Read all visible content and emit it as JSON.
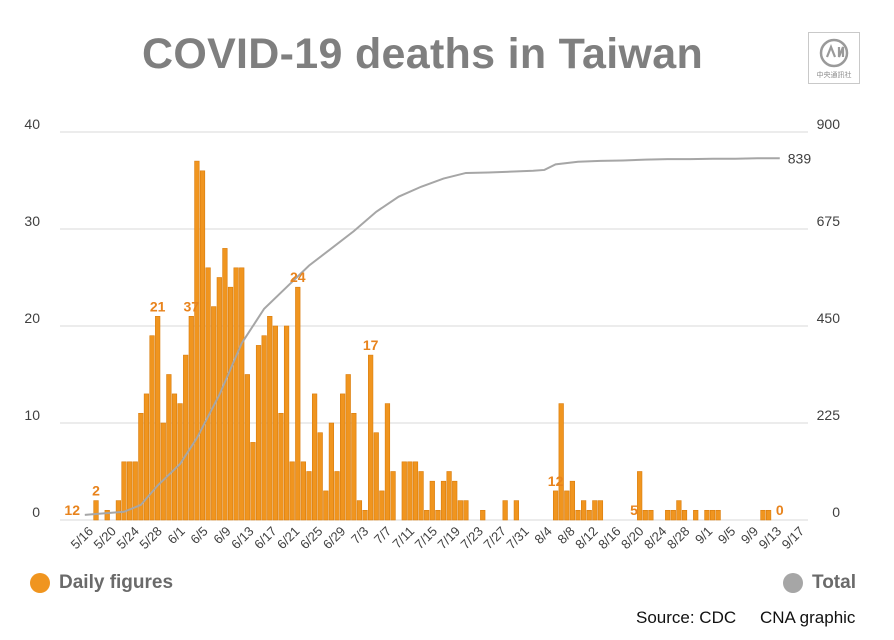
{
  "title": "COVID-19 deaths in Taiwan",
  "logo_text": "中央通訊社",
  "legend": {
    "daily_label": "Daily figures",
    "total_label": "Total"
  },
  "footer": {
    "source": "Source: CDC",
    "credit": "CNA graphic"
  },
  "colors": {
    "bar": "#f0951f",
    "bar_edge": "#d97c0c",
    "line": "#a6a6a6",
    "title": "#7f7f7f",
    "annotation": "#e8831c",
    "grid": "#d9d9d9"
  },
  "chart_data": {
    "type": "bar",
    "title": "COVID-19 deaths in Taiwan",
    "x_tick_labels": [
      "5/16",
      "5/20",
      "5/24",
      "5/28",
      "6/1",
      "6/5",
      "6/9",
      "6/13",
      "6/17",
      "6/21",
      "6/25",
      "6/29",
      "7/3",
      "7/7",
      "7/11",
      "7/15",
      "7/19",
      "7/23",
      "7/27",
      "7/31",
      "8/4",
      "8/8",
      "8/12",
      "8/16",
      "8/20",
      "8/24",
      "8/28",
      "9/1",
      "9/5",
      "9/9",
      "9/13",
      "9/17"
    ],
    "x_start": "5/16",
    "x_end": "9/17",
    "left_axis": {
      "min": 0,
      "max": 40,
      "ticks": [
        0,
        10,
        20,
        30,
        40
      ]
    },
    "right_axis": {
      "min": 0,
      "max": 900,
      "ticks": [
        0,
        225,
        450,
        675,
        900
      ]
    },
    "grid": true,
    "legend_position": "bottom",
    "series": [
      {
        "name": "Daily figures",
        "type": "bar",
        "axis": "left",
        "values": [
          0,
          0,
          2,
          0,
          1,
          0,
          2,
          6,
          6,
          6,
          11,
          13,
          19,
          21,
          10,
          15,
          13,
          12,
          17,
          21,
          37,
          36,
          26,
          22,
          25,
          28,
          24,
          26,
          26,
          15,
          8,
          18,
          19,
          21,
          20,
          11,
          20,
          6,
          24,
          6,
          5,
          13,
          9,
          3,
          10,
          5,
          13,
          15,
          11,
          2,
          1,
          17,
          9,
          3,
          12,
          5,
          0,
          6,
          6,
          6,
          5,
          1,
          4,
          1,
          4,
          5,
          4,
          2,
          2,
          0,
          0,
          1,
          0,
          0,
          0,
          2,
          0,
          2,
          0,
          0,
          0,
          0,
          0,
          0,
          3,
          12,
          3,
          4,
          1,
          2,
          1,
          2,
          2,
          0,
          0,
          0,
          0,
          0,
          0,
          5,
          1,
          1,
          0,
          0,
          1,
          1,
          2,
          1,
          0,
          1,
          0,
          1,
          1,
          1,
          0,
          0,
          0,
          0,
          0,
          0,
          0,
          1,
          1,
          0,
          0,
          0,
          0,
          0,
          0
        ],
        "annotations": [
          {
            "date": "5/16",
            "label": "12"
          },
          {
            "date": "5/18",
            "label": "2"
          },
          {
            "date": "6/4",
            "label": "37"
          },
          {
            "date": "5/29",
            "label": "21"
          },
          {
            "date": "6/23",
            "label": "24"
          },
          {
            "date": "7/6",
            "label": "17"
          },
          {
            "date": "8/8",
            "label": "12"
          },
          {
            "date": "8/22",
            "label": "5"
          },
          {
            "date": "9/17",
            "label": "0"
          }
        ]
      },
      {
        "name": "Total",
        "type": "line",
        "axis": "right",
        "points": [
          [
            "5/16",
            12
          ],
          [
            "5/23",
            19
          ],
          [
            "5/26",
            35
          ],
          [
            "5/29",
            80
          ],
          [
            "6/2",
            130
          ],
          [
            "6/5",
            190
          ],
          [
            "6/9",
            290
          ],
          [
            "6/13",
            410
          ],
          [
            "6/17",
            490
          ],
          [
            "6/21",
            540
          ],
          [
            "6/25",
            590
          ],
          [
            "6/29",
            630
          ],
          [
            "7/3",
            670
          ],
          [
            "7/7",
            715
          ],
          [
            "7/11",
            750
          ],
          [
            "7/15",
            773
          ],
          [
            "7/19",
            792
          ],
          [
            "7/23",
            805
          ],
          [
            "7/27",
            806
          ],
          [
            "7/31",
            808
          ],
          [
            "8/4",
            810
          ],
          [
            "8/6",
            812
          ],
          [
            "8/8",
            825
          ],
          [
            "8/12",
            831
          ],
          [
            "8/16",
            833
          ],
          [
            "8/20",
            834
          ],
          [
            "8/24",
            836
          ],
          [
            "8/28",
            837
          ],
          [
            "9/1",
            837
          ],
          [
            "9/5",
            838
          ],
          [
            "9/9",
            838
          ],
          [
            "9/13",
            839
          ],
          [
            "9/17",
            839
          ]
        ],
        "end_label": "839"
      }
    ]
  }
}
